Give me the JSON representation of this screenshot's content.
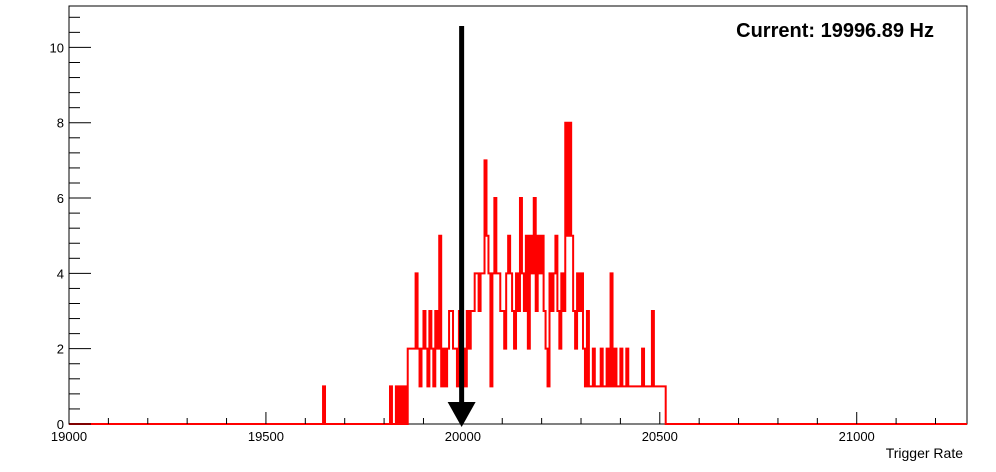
{
  "chart_data": {
    "type": "histogram",
    "title": "",
    "xlabel": "Trigger Rate",
    "ylabel": "",
    "xlim": [
      19000,
      21280
    ],
    "ylim": [
      0,
      11.1
    ],
    "xticks": [
      19000,
      19500,
      20000,
      20500,
      21000
    ],
    "yticks": [
      0,
      2,
      4,
      6,
      8,
      10
    ],
    "grid": false,
    "legend": "none",
    "bin_width": 5,
    "series": [
      {
        "color": "#ff0000",
        "bins": [
          [
            19645,
            1
          ],
          [
            19815,
            1
          ],
          [
            19830,
            1
          ],
          [
            19840,
            1
          ],
          [
            19850,
            1
          ],
          [
            19860,
            2
          ],
          [
            19865,
            2
          ],
          [
            19870,
            2
          ],
          [
            19875,
            2
          ],
          [
            19880,
            4
          ],
          [
            19885,
            2
          ],
          [
            19890,
            1
          ],
          [
            19895,
            2
          ],
          [
            19900,
            3
          ],
          [
            19905,
            2
          ],
          [
            19910,
            1
          ],
          [
            19915,
            3
          ],
          [
            19920,
            2
          ],
          [
            19925,
            1
          ],
          [
            19930,
            3
          ],
          [
            19935,
            2
          ],
          [
            19940,
            5
          ],
          [
            19945,
            1
          ],
          [
            19950,
            2
          ],
          [
            19955,
            1
          ],
          [
            19960,
            2
          ],
          [
            19965,
            3
          ],
          [
            19970,
            3
          ],
          [
            19975,
            2
          ],
          [
            19980,
            2
          ],
          [
            19985,
            1
          ],
          [
            19990,
            3
          ],
          [
            19995,
            1
          ],
          [
            20000,
            2
          ],
          [
            20005,
            1
          ],
          [
            20010,
            3
          ],
          [
            20015,
            2
          ],
          [
            20020,
            3
          ],
          [
            20025,
            3
          ],
          [
            20030,
            4
          ],
          [
            20035,
            4
          ],
          [
            20040,
            3
          ],
          [
            20045,
            4
          ],
          [
            20050,
            4
          ],
          [
            20055,
            7
          ],
          [
            20060,
            5
          ],
          [
            20065,
            4
          ],
          [
            20070,
            1
          ],
          [
            20075,
            4
          ],
          [
            20080,
            6
          ],
          [
            20085,
            4
          ],
          [
            20090,
            4
          ],
          [
            20095,
            3
          ],
          [
            20100,
            3
          ],
          [
            20105,
            2
          ],
          [
            20110,
            4
          ],
          [
            20115,
            5
          ],
          [
            20120,
            4
          ],
          [
            20125,
            3
          ],
          [
            20130,
            2
          ],
          [
            20135,
            4
          ],
          [
            20140,
            3
          ],
          [
            20145,
            6
          ],
          [
            20150,
            4
          ],
          [
            20155,
            3
          ],
          [
            20160,
            5
          ],
          [
            20165,
            2
          ],
          [
            20170,
            5
          ],
          [
            20175,
            4
          ],
          [
            20180,
            6
          ],
          [
            20185,
            3
          ],
          [
            20190,
            5
          ],
          [
            20195,
            4
          ],
          [
            20200,
            5
          ],
          [
            20205,
            3
          ],
          [
            20210,
            2
          ],
          [
            20215,
            1
          ],
          [
            20220,
            4
          ],
          [
            20225,
            3
          ],
          [
            20230,
            4
          ],
          [
            20235,
            5
          ],
          [
            20240,
            3
          ],
          [
            20245,
            2
          ],
          [
            20250,
            4
          ],
          [
            20255,
            3
          ],
          [
            20260,
            8
          ],
          [
            20265,
            5
          ],
          [
            20270,
            8
          ],
          [
            20275,
            5
          ],
          [
            20280,
            3
          ],
          [
            20285,
            2
          ],
          [
            20290,
            4
          ],
          [
            20295,
            3
          ],
          [
            20300,
            4
          ],
          [
            20305,
            2
          ],
          [
            20310,
            1
          ],
          [
            20315,
            3
          ],
          [
            20320,
            1
          ],
          [
            20325,
            1
          ],
          [
            20330,
            2
          ],
          [
            20335,
            1
          ],
          [
            20340,
            1
          ],
          [
            20345,
            1
          ],
          [
            20350,
            2
          ],
          [
            20355,
            1
          ],
          [
            20360,
            1
          ],
          [
            20365,
            2
          ],
          [
            20370,
            1
          ],
          [
            20375,
            4
          ],
          [
            20380,
            1
          ],
          [
            20385,
            2
          ],
          [
            20390,
            1
          ],
          [
            20395,
            1
          ],
          [
            20400,
            2
          ],
          [
            20405,
            1
          ],
          [
            20410,
            1
          ],
          [
            20415,
            2
          ],
          [
            20420,
            1
          ],
          [
            20425,
            1
          ],
          [
            20430,
            1
          ],
          [
            20435,
            1
          ],
          [
            20440,
            1
          ],
          [
            20445,
            1
          ],
          [
            20450,
            1
          ],
          [
            20455,
            2
          ],
          [
            20460,
            1
          ],
          [
            20465,
            1
          ],
          [
            20470,
            1
          ],
          [
            20475,
            1
          ],
          [
            20480,
            3
          ],
          [
            20485,
            1
          ],
          [
            20490,
            1
          ],
          [
            20495,
            1
          ],
          [
            20500,
            1
          ],
          [
            20505,
            1
          ],
          [
            20510,
            1
          ]
        ]
      }
    ],
    "marker": {
      "value": 19996.89,
      "label": "Current: 19996.89 Hz",
      "color": "#000000"
    }
  }
}
